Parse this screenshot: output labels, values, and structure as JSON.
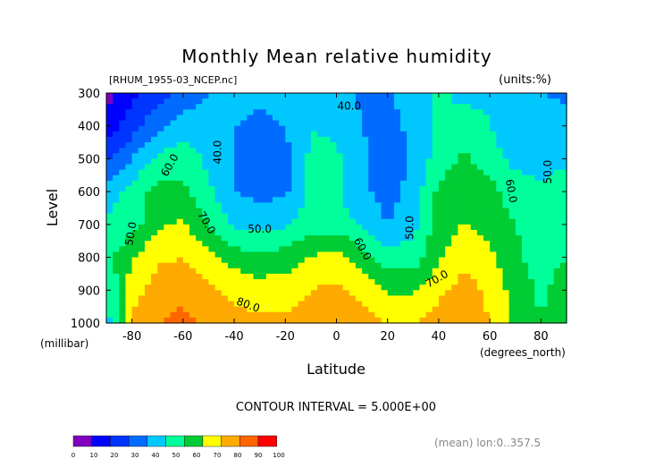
{
  "chart_data": {
    "type": "heatmap",
    "title": "Monthly Mean relative humidity",
    "subtitle_left": "[RHUM_1955-03_NCEP.nc]",
    "subtitle_right": "(units:%)",
    "ylabel": "Level",
    "ylabel_units": "(millibar)",
    "xlabel": "Latitude",
    "xlabel_units": "(degrees_north)",
    "footer": "CONTOUR INTERVAL = 5.000E+00",
    "averaging_note": "(mean) lon:0..357.5",
    "xlim": [
      -90,
      90
    ],
    "ylim": [
      1000,
      300
    ],
    "x_ticks": [
      -80,
      -60,
      -40,
      -20,
      0,
      20,
      40,
      60,
      80
    ],
    "x_tick_labels": [
      "-80",
      "-60",
      "-40",
      "-20",
      "0",
      "20",
      "40",
      "60",
      "80"
    ],
    "y_ticks": [
      300,
      400,
      500,
      600,
      700,
      800,
      900,
      1000
    ],
    "y_tick_labels": [
      "300",
      "400",
      "500",
      "600",
      "700",
      "800",
      "900",
      "1000"
    ],
    "x": [
      -90,
      -80,
      -70,
      -60,
      -50,
      -40,
      -30,
      -20,
      -10,
      0,
      10,
      20,
      30,
      40,
      50,
      60,
      70,
      80,
      90
    ],
    "levels": [
      300,
      400,
      500,
      600,
      700,
      800,
      900,
      1000
    ],
    "z": [
      [
        5,
        18,
        25,
        33,
        40,
        45,
        42,
        45,
        50,
        47,
        38,
        38,
        45,
        52,
        46,
        48,
        40,
        40,
        38
      ],
      [
        15,
        25,
        38,
        45,
        43,
        40,
        38,
        40,
        50,
        48,
        40,
        37,
        43,
        52,
        56,
        50,
        42,
        43,
        45
      ],
      [
        28,
        40,
        52,
        55,
        48,
        40,
        36,
        37,
        52,
        52,
        42,
        32,
        41,
        55,
        62,
        55,
        47,
        46,
        48
      ],
      [
        45,
        55,
        63,
        62,
        52,
        40,
        37,
        38,
        52,
        52,
        42,
        36,
        44,
        62,
        66,
        63,
        55,
        52,
        55
      ],
      [
        52,
        55,
        68,
        72,
        60,
        48,
        47,
        48,
        55,
        55,
        48,
        40,
        47,
        66,
        70,
        66,
        60,
        55,
        58
      ],
      [
        55,
        70,
        78,
        80,
        72,
        65,
        62,
        65,
        70,
        75,
        65,
        55,
        55,
        68,
        78,
        72,
        62,
        56,
        60
      ],
      [
        50,
        75,
        85,
        88,
        82,
        78,
        75,
        75,
        80,
        82,
        78,
        68,
        68,
        78,
        84,
        78,
        65,
        58,
        65
      ],
      [
        45,
        82,
        90,
        92,
        88,
        83,
        82,
        82,
        84,
        86,
        84,
        80,
        80,
        84,
        87,
        80,
        68,
        60,
        70
      ]
    ],
    "contour_labels": [
      {
        "text": "40.0",
        "x": 5,
        "y": 350,
        "rotate": 0
      },
      {
        "text": "40.0",
        "x": -45,
        "y": 480,
        "rotate": -90
      },
      {
        "text": "50.0",
        "x": -30,
        "y": 725,
        "rotate": 0
      },
      {
        "text": "50.0",
        "x": 30,
        "y": 710,
        "rotate": -90
      },
      {
        "text": "60.0",
        "x": -64,
        "y": 525,
        "rotate": -60
      },
      {
        "text": "60.0",
        "x": 9,
        "y": 780,
        "rotate": 60
      },
      {
        "text": "60.0",
        "x": 67,
        "y": 600,
        "rotate": 80
      },
      {
        "text": "50.0",
        "x": 84,
        "y": 540,
        "rotate": -90
      },
      {
        "text": "50.0",
        "x": -79,
        "y": 730,
        "rotate": -80
      },
      {
        "text": "70.0",
        "x": -52,
        "y": 700,
        "rotate": 60
      },
      {
        "text": "70.0",
        "x": 40,
        "y": 875,
        "rotate": -30
      },
      {
        "text": "80.0",
        "x": -35,
        "y": 955,
        "rotate": 20
      }
    ],
    "colorbar": {
      "ticks": [
        "0",
        "10",
        "20",
        "30",
        "40",
        "50",
        "60",
        "70",
        "80",
        "90",
        "100"
      ],
      "colors": [
        "#7f00bf",
        "#0000ff",
        "#0034ff",
        "#006bff",
        "#00c8ff",
        "#00ff9a",
        "#00cc33",
        "#ffff00",
        "#ffaa00",
        "#ff6600",
        "#ff0000"
      ]
    },
    "grid": false,
    "legend_position": "bottom-left"
  }
}
